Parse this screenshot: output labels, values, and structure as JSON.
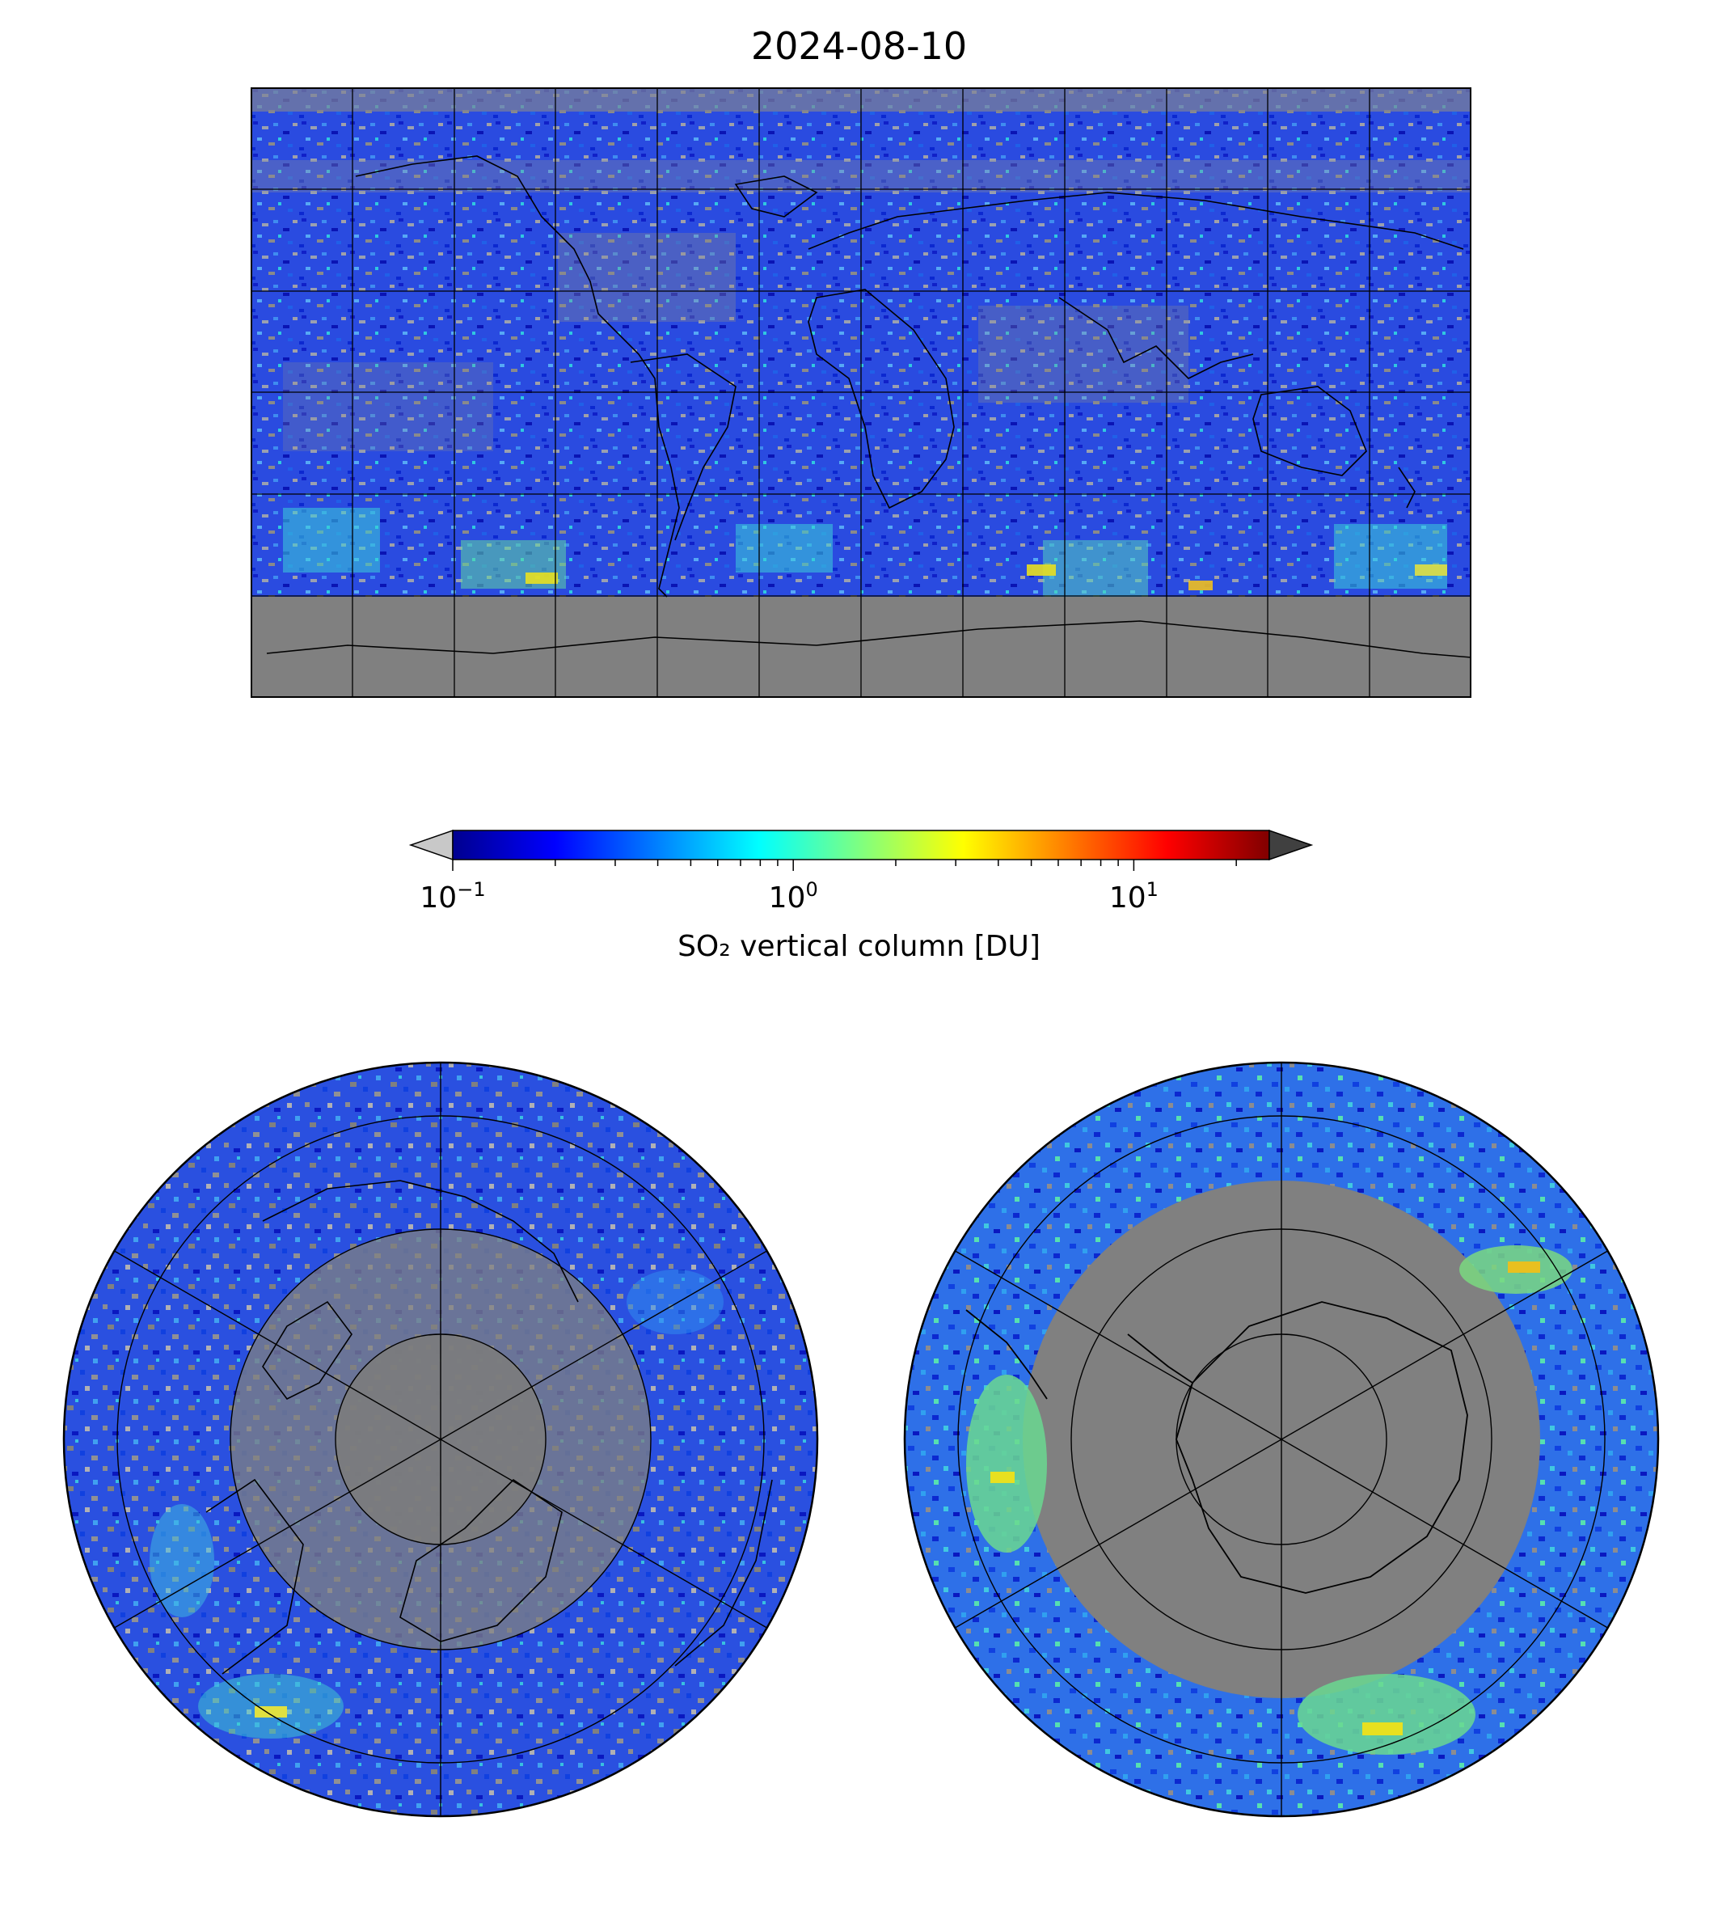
{
  "title": "2024-08-10",
  "colorbar": {
    "label": "SO₂ vertical column [DU]",
    "scale": "log",
    "range": [
      0.1,
      25
    ],
    "ticks": [
      {
        "value": 0.1,
        "base": "10",
        "exp": "−1"
      },
      {
        "value": 1,
        "base": "10",
        "exp": "0"
      },
      {
        "value": 10,
        "base": "10",
        "exp": "1"
      }
    ],
    "colormap": "jet",
    "under_color": "#c8c8c8",
    "over_color": "#404040",
    "missing_color": "#808080"
  },
  "maps": [
    {
      "name": "global",
      "projection": "plate-carree"
    },
    {
      "name": "north-polar",
      "projection": "north-polar-stereographic"
    },
    {
      "name": "south-polar",
      "projection": "south-polar-stereographic"
    }
  ]
}
